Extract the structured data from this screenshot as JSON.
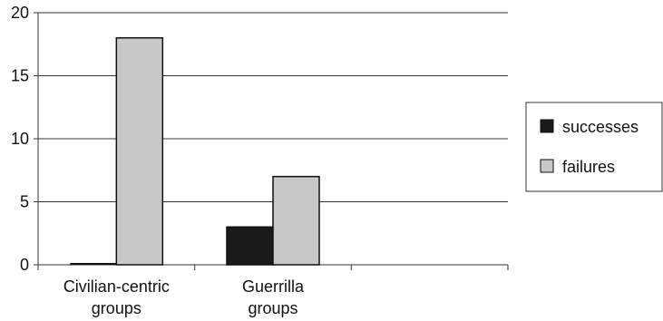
{
  "chart_data": {
    "type": "bar",
    "categories": [
      [
        "Civilian-centric",
        "groups"
      ],
      [
        "Guerrilla",
        "groups"
      ]
    ],
    "series": [
      {
        "name": "successes",
        "values": [
          0,
          3
        ],
        "color": "#1a1a1a"
      },
      {
        "name": "failures",
        "values": [
          18,
          7
        ],
        "color": "#c8c8c8"
      }
    ],
    "y_ticks": [
      "0",
      "5",
      "10",
      "15",
      "20"
    ],
    "ylim": [
      0,
      20
    ],
    "grid": true,
    "legend_position": "right"
  }
}
